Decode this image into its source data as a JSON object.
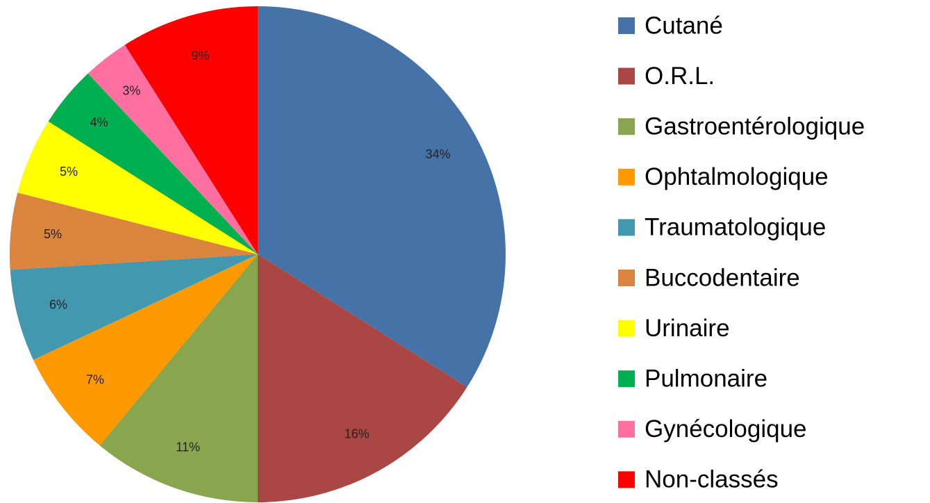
{
  "chart_data": {
    "type": "pie",
    "categories": [
      "Cutané",
      "O.R.L.",
      "Gastroentérologique",
      "Ophtalmologique",
      "Traumatologique",
      "Buccodentaire",
      "Urinaire",
      "Pulmonaire",
      "Gynécologique",
      "Non-classés"
    ],
    "values": [
      34,
      16,
      11,
      7,
      6,
      5,
      5,
      4,
      3,
      9
    ],
    "value_labels": [
      "34%",
      "16%",
      "11%",
      "7%",
      "6%",
      "5%",
      "5%",
      "4%",
      "3%",
      "9%"
    ],
    "colors": [
      "#4572a7",
      "#aa4643",
      "#89a54e",
      "#ff9900",
      "#4198af",
      "#db843d",
      "#ffff00",
      "#00b050",
      "#ff6fa0",
      "#ff0000"
    ],
    "legend": "right"
  }
}
